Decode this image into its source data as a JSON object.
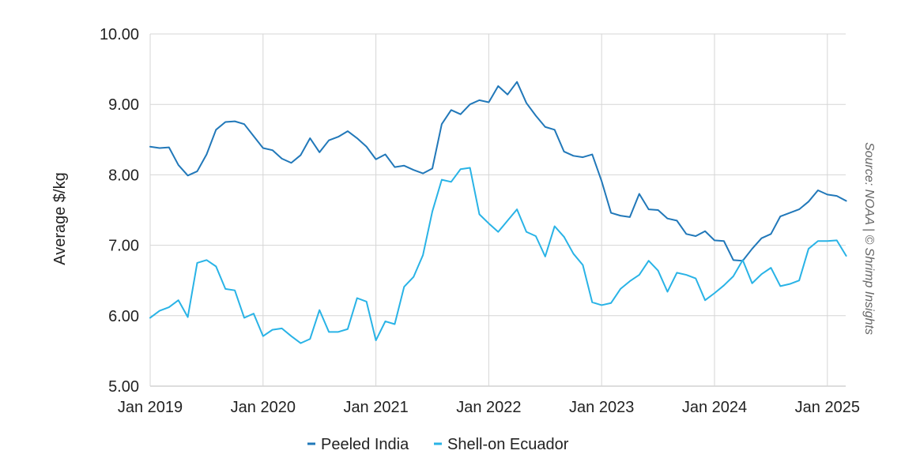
{
  "source_note": "Source: NOAA | © Shrimp Insights",
  "colors": {
    "peeled_india": "#2178b9",
    "shell_on_ecuador": "#29b3e6",
    "grid": "#d6d6d6"
  },
  "chart_data": {
    "type": "line",
    "ylabel": "Average $/kg",
    "xlabel": "",
    "ylim": [
      5,
      10
    ],
    "y_ticks": [
      "5.00",
      "6.00",
      "7.00",
      "8.00",
      "9.00",
      "10.00"
    ],
    "x_ticks": [
      "Jan 2019",
      "Jan 2020",
      "Jan 2021",
      "Jan 2022",
      "Jan 2023",
      "Jan 2024",
      "Jan 2025"
    ],
    "grid": true,
    "legend_position": "bottom",
    "x_start": "Jan 2019",
    "x_end": "Mar 2025",
    "series": [
      {
        "name": "Peeled India",
        "values": [
          8.4,
          8.38,
          8.39,
          8.14,
          7.99,
          8.05,
          8.29,
          8.64,
          8.75,
          8.76,
          8.72,
          8.55,
          8.38,
          8.35,
          8.23,
          8.17,
          8.28,
          8.52,
          8.32,
          8.49,
          8.54,
          8.62,
          8.52,
          8.4,
          8.22,
          8.29,
          8.11,
          8.13,
          8.07,
          8.02,
          8.09,
          8.72,
          8.92,
          8.86,
          9.0,
          9.06,
          9.03,
          9.26,
          9.14,
          9.32,
          9.02,
          8.84,
          8.68,
          8.64,
          8.33,
          8.27,
          8.25,
          8.29,
          7.91,
          7.46,
          7.42,
          7.4,
          7.73,
          7.51,
          7.5,
          7.38,
          7.35,
          7.16,
          7.13,
          7.2,
          7.07,
          7.06,
          6.79,
          6.78,
          6.95,
          7.1,
          7.16,
          7.41,
          7.46,
          7.51,
          7.62,
          7.78,
          7.72,
          7.7,
          7.63
        ]
      },
      {
        "name": "Shell-on Ecuador",
        "values": [
          5.97,
          6.07,
          6.12,
          6.22,
          5.98,
          6.75,
          6.79,
          6.7,
          6.38,
          6.36,
          5.97,
          6.03,
          5.71,
          5.8,
          5.82,
          5.71,
          5.61,
          5.67,
          6.08,
          5.77,
          5.77,
          5.81,
          6.25,
          6.2,
          5.65,
          5.92,
          5.88,
          6.41,
          6.55,
          6.86,
          7.48,
          7.93,
          7.9,
          8.08,
          8.1,
          7.44,
          7.31,
          7.19,
          7.35,
          7.51,
          7.19,
          7.13,
          6.84,
          7.27,
          7.12,
          6.88,
          6.72,
          6.19,
          6.15,
          6.18,
          6.38,
          6.49,
          6.58,
          6.78,
          6.64,
          6.34,
          6.61,
          6.58,
          6.53,
          6.22,
          6.32,
          6.43,
          6.56,
          6.79,
          6.46,
          6.59,
          6.68,
          6.42,
          6.45,
          6.5,
          6.95,
          7.06,
          7.06,
          7.07,
          6.85
        ]
      }
    ]
  }
}
